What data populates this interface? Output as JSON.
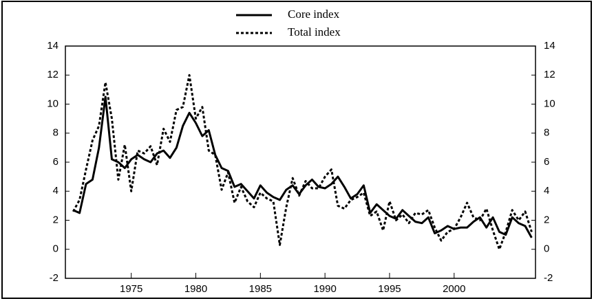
{
  "chart_data": {
    "type": "line",
    "x": [
      1970.5,
      1971,
      1971.5,
      1972,
      1972.5,
      1973,
      1973.5,
      1974,
      1974.5,
      1975,
      1975.5,
      1976,
      1976.5,
      1977,
      1977.5,
      1978,
      1978.5,
      1979,
      1979.5,
      1980,
      1980.5,
      1981,
      1981.5,
      1982,
      1982.5,
      1983,
      1983.5,
      1984,
      1984.5,
      1985,
      1985.5,
      1986,
      1986.5,
      1987,
      1987.5,
      1988,
      1988.5,
      1989,
      1989.5,
      1990,
      1990.5,
      1991,
      1991.5,
      1992,
      1992.5,
      1993,
      1993.5,
      1994,
      1994.5,
      1995,
      1995.5,
      1996,
      1996.5,
      1997,
      1997.5,
      1998,
      1998.5,
      1999,
      1999.5,
      2000,
      2000.5,
      2001,
      2001.5,
      2002,
      2002.5,
      2003,
      2003.5,
      2004,
      2004.5,
      2005,
      2005.5,
      2006
    ],
    "series": [
      {
        "name": "Core index",
        "color": "#000000",
        "dash": false,
        "values": [
          2.7,
          2.5,
          4.5,
          4.8,
          7,
          10.5,
          6.2,
          6,
          5.6,
          6.2,
          6.5,
          6.2,
          6,
          6.6,
          6.8,
          6.3,
          7,
          8.5,
          9.4,
          8.7,
          7.8,
          8.2,
          6.5,
          5.6,
          5.4,
          4.3,
          4.5,
          4,
          3.5,
          4.4,
          3.9,
          3.6,
          3.4,
          4.1,
          4.4,
          3.8,
          4.4,
          4.8,
          4.3,
          4.2,
          4.5,
          5,
          4.3,
          3.5,
          3.8,
          4.4,
          2.5,
          3.1,
          2.7,
          2.3,
          2.1,
          2.7,
          2.3,
          1.9,
          1.8,
          2.2,
          1.1,
          1.3,
          1.6,
          1.4,
          1.5,
          1.5,
          1.9,
          2.2,
          1.5,
          2.2,
          1.2,
          1.0,
          2.2,
          1.8,
          1.6,
          0.8
        ]
      },
      {
        "name": "Total index",
        "color": "#000000",
        "dash": true,
        "values": [
          2.6,
          3.4,
          5.5,
          7.5,
          8.5,
          11.5,
          9,
          4.8,
          7.2,
          4,
          6.8,
          6.6,
          7.1,
          5.8,
          8.3,
          7.4,
          9.6,
          9.8,
          12,
          9,
          9.8,
          6.8,
          6.5,
          4.1,
          5.3,
          3.2,
          4.3,
          3.3,
          2.9,
          3.9,
          3.5,
          3.3,
          0.3,
          2.9,
          4.9,
          3.7,
          4.7,
          4.2,
          4.2,
          5,
          5.5,
          3,
          2.8,
          3.4,
          3.6,
          3.9,
          2.3,
          2.6,
          1.3,
          3.3,
          2,
          2.4,
          1.8,
          2.5,
          2.4,
          2.7,
          1.5,
          0.6,
          1.2,
          1.4,
          2.2,
          3.2,
          2.2,
          2,
          2.8,
          1.3,
          0,
          1.2,
          2.7,
          2.0,
          2.6,
          1.2
        ]
      }
    ],
    "xlim": [
      1969.9,
      2006.3
    ],
    "xticks": [
      1975,
      1980,
      1985,
      1990,
      1995,
      2000
    ],
    "ylim": [
      -2,
      14
    ],
    "yticks": [
      -2,
      0,
      2,
      4,
      6,
      8,
      10,
      12,
      14
    ],
    "y2lim": [
      -2,
      14
    ],
    "y2ticks": [
      -2,
      0,
      2,
      4,
      6,
      8,
      10,
      12,
      14
    ]
  }
}
